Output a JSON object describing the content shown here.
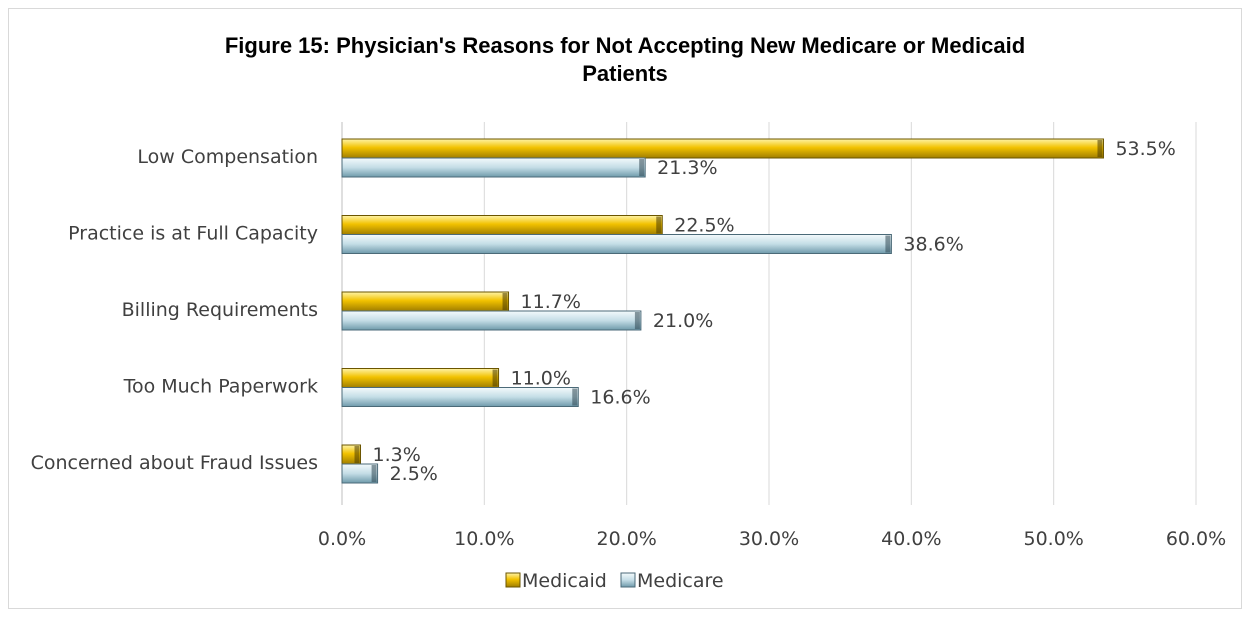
{
  "chart_data": {
    "type": "bar",
    "orientation": "horizontal",
    "title": "Figure 15: Physician's Reasons for Not Accepting New Medicare or Medicaid Patients",
    "title_lines": [
      "Figure 15: Physician's Reasons for Not Accepting New Medicare or Medicaid",
      "Patients"
    ],
    "categories": [
      "Low Compensation",
      "Practice is at Full Capacity",
      "Billing Requirements",
      "Too Much Paperwork",
      "Concerned about Fraud Issues"
    ],
    "series": [
      {
        "name": "Medicaid",
        "values": [
          53.5,
          22.5,
          11.7,
          11.0,
          1.3
        ],
        "labels": [
          "53.5%",
          "22.5%",
          "11.7%",
          "11.0%",
          "1.3%"
        ],
        "color": "#e6b800"
      },
      {
        "name": "Medicare",
        "values": [
          21.3,
          38.6,
          21.0,
          16.6,
          2.5
        ],
        "labels": [
          "21.3%",
          "38.6%",
          "21.0%",
          "16.6%",
          "2.5%"
        ],
        "color": "#8fb3c2"
      }
    ],
    "xlim": [
      0,
      60
    ],
    "x_ticks": [
      "0.0%",
      "10.0%",
      "20.0%",
      "30.0%",
      "40.0%",
      "50.0%",
      "60.0%"
    ],
    "grid": true,
    "legend_position": "bottom",
    "xlabel": "",
    "ylabel": ""
  }
}
